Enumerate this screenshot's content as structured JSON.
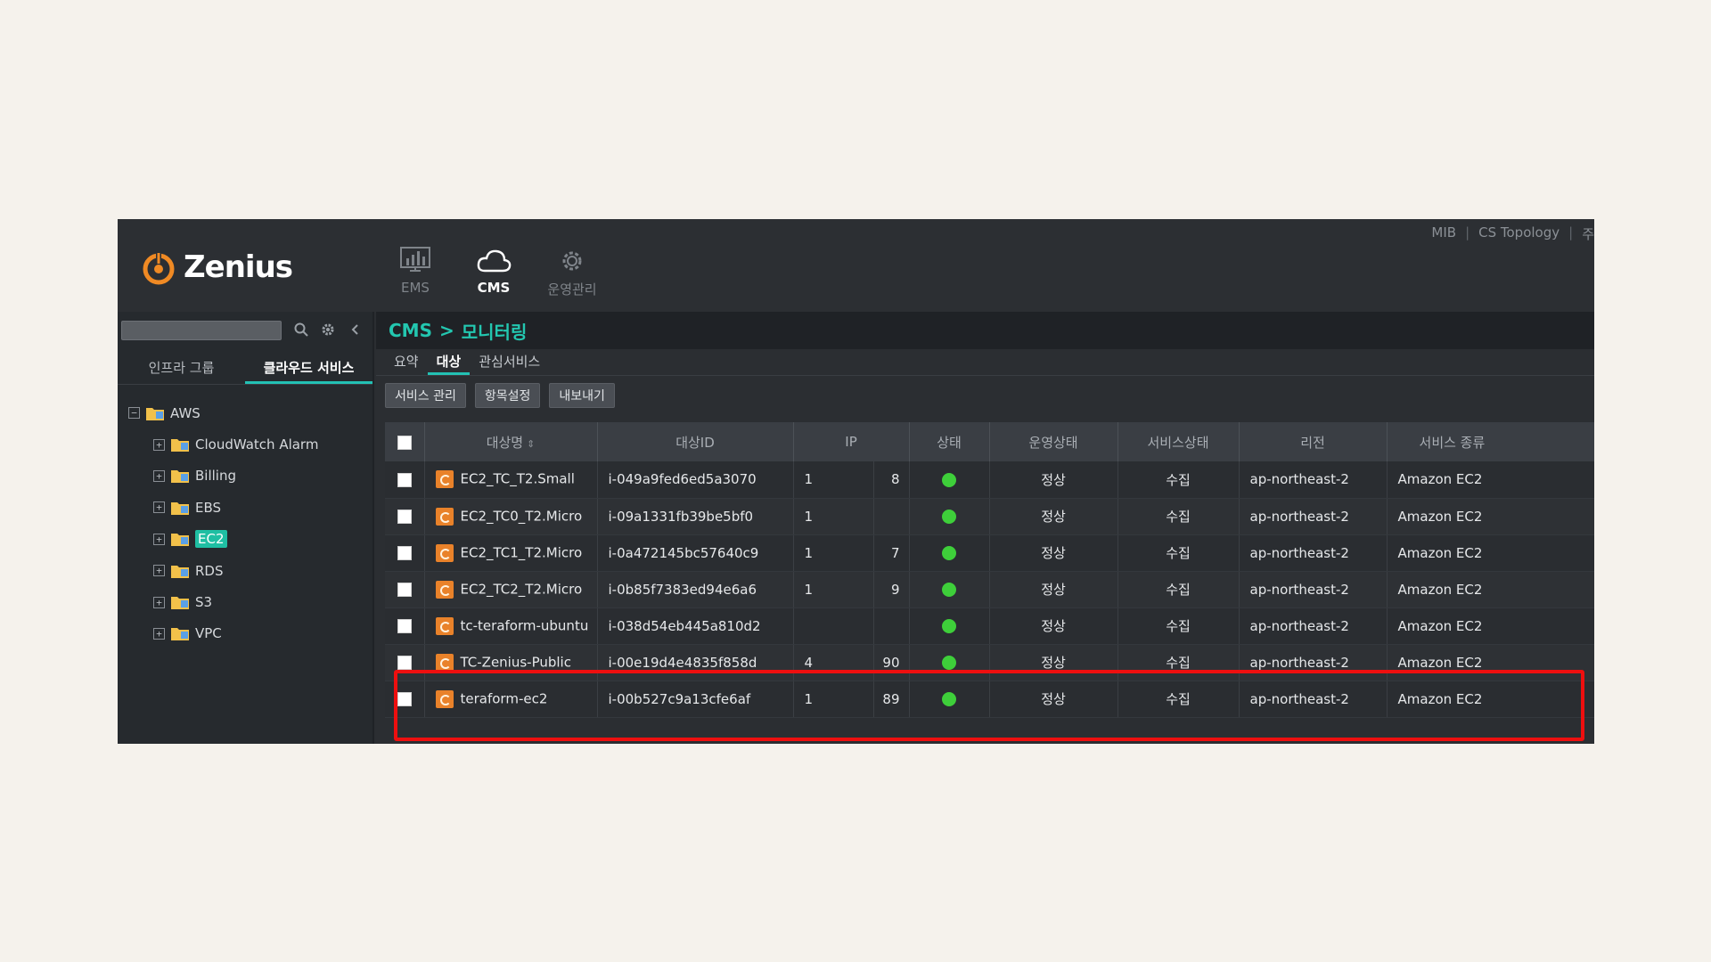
{
  "app": {
    "logo_text": "Zenius",
    "top_links": [
      "MIB",
      "CS Topology",
      "주"
    ],
    "nav": [
      {
        "label": "EMS",
        "icon": "chart-monitor-icon",
        "active": false
      },
      {
        "label": "CMS",
        "icon": "cloud-icon",
        "active": true
      },
      {
        "label": "운영관리",
        "icon": "gear-icon",
        "active": false
      }
    ]
  },
  "sidebar": {
    "search_placeholder": "",
    "tabs": [
      {
        "label": "인프라 그룹",
        "active": false
      },
      {
        "label": "클라우드 서비스",
        "active": true
      }
    ],
    "tree": {
      "root": "AWS",
      "children": [
        "CloudWatch Alarm",
        "Billing",
        "EBS",
        "EC2",
        "RDS",
        "S3",
        "VPC"
      ],
      "selected": "EC2"
    }
  },
  "main": {
    "breadcrumb": {
      "root": "CMS",
      "separator": ">",
      "current": "모니터링"
    },
    "tabs": [
      {
        "label": "요약",
        "active": false
      },
      {
        "label": "대상",
        "active": true
      },
      {
        "label": "관심서비스",
        "active": false
      }
    ],
    "toolbar": [
      "서비스 관리",
      "항목설정",
      "내보내기"
    ],
    "table": {
      "columns": [
        "대상명",
        "대상ID",
        "IP",
        "",
        "상태",
        "운영상태",
        "서비스상태",
        "리전",
        "서비스 종류"
      ],
      "rows": [
        {
          "name": "EC2_TC_T2.Small",
          "id": "i-049a9fed6ed5a3070",
          "ip1": "1",
          "ip2": "8",
          "op": "정상",
          "svc": "수집",
          "region": "ap-northeast-2",
          "type": "Amazon EC2"
        },
        {
          "name": "EC2_TC0_T2.Micro",
          "id": "i-09a1331fb39be5bf0",
          "ip1": "1",
          "ip2": "",
          "op": "정상",
          "svc": "수집",
          "region": "ap-northeast-2",
          "type": "Amazon EC2"
        },
        {
          "name": "EC2_TC1_T2.Micro",
          "id": "i-0a472145bc57640c9",
          "ip1": "1",
          "ip2": "7",
          "op": "정상",
          "svc": "수집",
          "region": "ap-northeast-2",
          "type": "Amazon EC2"
        },
        {
          "name": "EC2_TC2_T2.Micro",
          "id": "i-0b85f7383ed94e6a6",
          "ip1": "1",
          "ip2": "9",
          "op": "정상",
          "svc": "수집",
          "region": "ap-northeast-2",
          "type": "Amazon EC2"
        },
        {
          "name": "tc-teraform-ubuntu",
          "id": "i-038d54eb445a810d2",
          "ip1": "",
          "ip2": "",
          "op": "정상",
          "svc": "수집",
          "region": "ap-northeast-2",
          "type": "Amazon EC2"
        },
        {
          "name": "TC-Zenius-Public",
          "id": "i-00e19d4e4835f858d",
          "ip1": "4",
          "ip2": "90",
          "op": "정상",
          "svc": "수집",
          "region": "ap-northeast-2",
          "type": "Amazon EC2"
        },
        {
          "name": "teraform-ec2",
          "id": "i-00b527c9a13cfe6af",
          "ip1": "1",
          "ip2": "89",
          "op": "정상",
          "svc": "수집",
          "region": "ap-northeast-2",
          "type": "Amazon EC2"
        }
      ]
    }
  },
  "colors": {
    "accent": "#23c1b4",
    "status_ok": "#3ecf3a",
    "highlight": "#ee0f0f",
    "instance_icon": "#e9822a"
  }
}
